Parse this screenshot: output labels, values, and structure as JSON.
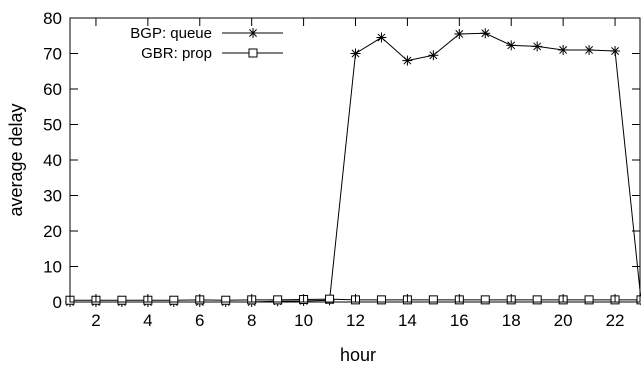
{
  "chart_data": {
    "type": "line",
    "title": "",
    "xlabel": "hour",
    "ylabel": "average delay",
    "xlim": [
      1,
      23
    ],
    "ylim": [
      0,
      80
    ],
    "xticks": [
      2,
      4,
      6,
      8,
      10,
      12,
      14,
      16,
      18,
      20,
      22
    ],
    "yticks": [
      0,
      10,
      20,
      30,
      40,
      50,
      60,
      70,
      80
    ],
    "grid": false,
    "legend_position": "top-left",
    "x": [
      1,
      2,
      3,
      4,
      5,
      6,
      7,
      8,
      9,
      10,
      11,
      12,
      13,
      14,
      15,
      16,
      17,
      18,
      19,
      20,
      21,
      22,
      23
    ],
    "series": [
      {
        "name": "BGP: queue",
        "marker": "asterisk",
        "color": "#000000",
        "values": [
          0,
          0,
          0,
          0,
          0,
          0,
          0,
          0,
          0.2,
          0.3,
          0.5,
          70,
          74.5,
          68,
          69.5,
          75.5,
          75.7,
          72.3,
          72,
          71,
          71,
          70.7,
          0.5
        ]
      },
      {
        "name": "GBR: prop",
        "marker": "square",
        "color": "#000000",
        "values": [
          0.5,
          0.5,
          0.5,
          0.5,
          0.5,
          0.6,
          0.5,
          0.6,
          0.6,
          0.7,
          0.8,
          0.6,
          0.6,
          0.6,
          0.6,
          0.6,
          0.6,
          0.6,
          0.6,
          0.6,
          0.6,
          0.6,
          0.6
        ]
      }
    ]
  }
}
